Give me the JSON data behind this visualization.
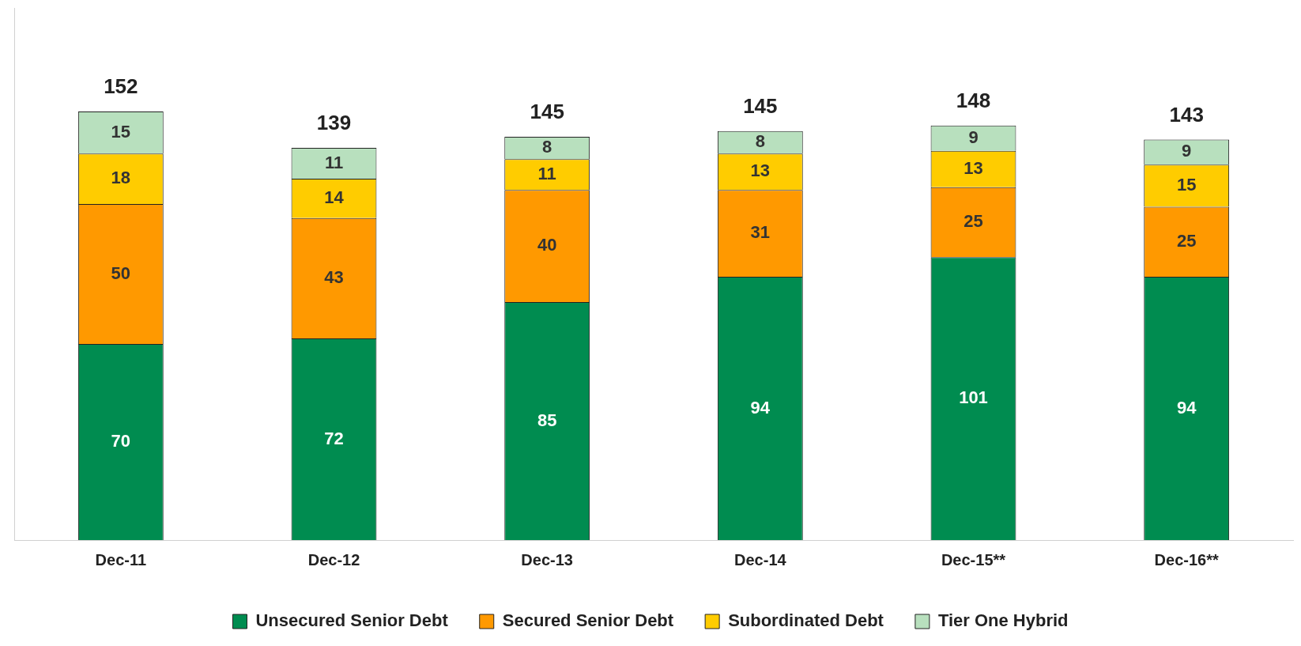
{
  "chart_data": {
    "type": "bar",
    "stacked": true,
    "categories": [
      "Dec-11",
      "Dec-12",
      "Dec-13",
      "Dec-14",
      "Dec-15**",
      "Dec-16**"
    ],
    "series": [
      {
        "name": "Unsecured Senior Debt",
        "color": "#008c50",
        "values": [
          70,
          72,
          85,
          94,
          101,
          94
        ]
      },
      {
        "name": "Secured Senior Debt",
        "color": "#ff9900",
        "values": [
          50,
          43,
          40,
          31,
          25,
          25
        ]
      },
      {
        "name": "Subordinated Debt",
        "color": "#ffcc00",
        "values": [
          18,
          14,
          11,
          13,
          13,
          15
        ]
      },
      {
        "name": "Tier One Hybrid",
        "color": "#b8e0be",
        "values": [
          15,
          11,
          8,
          8,
          9,
          9
        ]
      }
    ],
    "totals": [
      "152",
      "139",
      "145",
      "145",
      "148",
      "143"
    ],
    "ylim": [
      0,
      190
    ],
    "tick_labels": "x",
    "data_labels": true,
    "legend": "bottom",
    "grid": false
  }
}
